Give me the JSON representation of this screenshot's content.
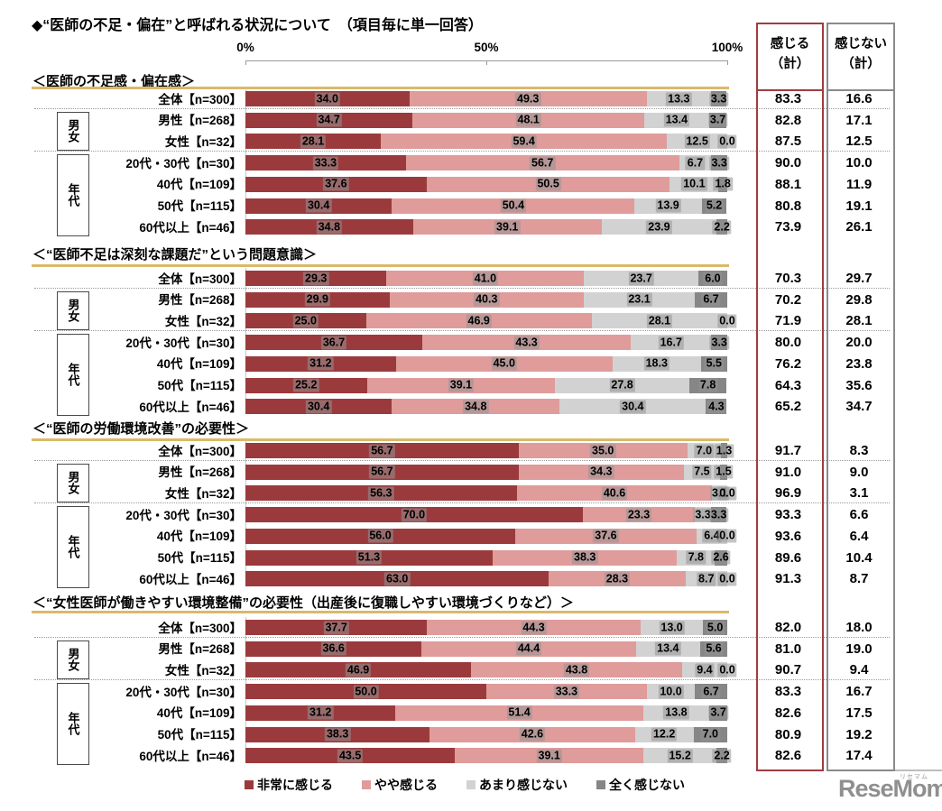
{
  "title": "◆“医師の不足・偏在”と呼ばれる状況について　（項目毎に単一回答）",
  "axis_ticks": [
    "0%",
    "50%",
    "100%"
  ],
  "summary_columns": [
    {
      "title_line1": "感じる",
      "title_line2": "（計）",
      "border_color": "#A03C40"
    },
    {
      "title_line1": "感じない",
      "title_line2": "（計）",
      "border_color": "#8a8a8a"
    }
  ],
  "legend": [
    {
      "label": "非常に感じる",
      "color": "#9B3A3C"
    },
    {
      "label": "やや感じる",
      "color": "#DF9C9B"
    },
    {
      "label": "あまり感じない",
      "color": "#D2D2D2"
    },
    {
      "label": "全く感じない",
      "color": "#868686"
    }
  ],
  "group_labels": {
    "gender": "男女",
    "age": "年代"
  },
  "logo": {
    "text": "ReseMom.",
    "ruby": "リセマム"
  },
  "chart_data": {
    "type": "bar",
    "stacked": true,
    "orientation": "horizontal",
    "x_range": [
      0,
      100
    ],
    "series_labels": [
      "非常に感じる",
      "やや感じる",
      "あまり感じない",
      "全く感じない"
    ],
    "summary_labels": [
      "感じる（計）",
      "感じない（計）"
    ],
    "sections": [
      {
        "title": "＜医師の不足感・偏在感＞",
        "rows": [
          {
            "label": "全体【n=300】",
            "values": [
              34.0,
              49.3,
              13.3,
              3.3
            ],
            "agree_total": 83.3,
            "disagree_total": 16.6
          },
          {
            "label": "男性【n=268】",
            "values": [
              34.7,
              48.1,
              13.4,
              3.7
            ],
            "agree_total": 82.8,
            "disagree_total": 17.1
          },
          {
            "label": "女性【n=32】",
            "values": [
              28.1,
              59.4,
              12.5,
              0.0
            ],
            "agree_total": 87.5,
            "disagree_total": 12.5
          },
          {
            "label": "20代・30代【n=30】",
            "values": [
              33.3,
              56.7,
              6.7,
              3.3
            ],
            "agree_total": 90.0,
            "disagree_total": 10.0
          },
          {
            "label": "40代【n=109】",
            "values": [
              37.6,
              50.5,
              10.1,
              1.8
            ],
            "agree_total": 88.1,
            "disagree_total": 11.9
          },
          {
            "label": "50代【n=115】",
            "values": [
              30.4,
              50.4,
              13.9,
              5.2
            ],
            "agree_total": 80.8,
            "disagree_total": 19.1
          },
          {
            "label": "60代以上【n=46】",
            "values": [
              34.8,
              39.1,
              23.9,
              2.2
            ],
            "agree_total": 73.9,
            "disagree_total": 26.1
          }
        ]
      },
      {
        "title": "＜“医師不足は深刻な課題だ”という問題意識＞",
        "rows": [
          {
            "label": "全体【n=300】",
            "values": [
              29.3,
              41.0,
              23.7,
              6.0
            ],
            "agree_total": 70.3,
            "disagree_total": 29.7
          },
          {
            "label": "男性【n=268】",
            "values": [
              29.9,
              40.3,
              23.1,
              6.7
            ],
            "agree_total": 70.2,
            "disagree_total": 29.8
          },
          {
            "label": "女性【n=32】",
            "values": [
              25.0,
              46.9,
              28.1,
              0.0
            ],
            "agree_total": 71.9,
            "disagree_total": 28.1
          },
          {
            "label": "20代・30代【n=30】",
            "values": [
              36.7,
              43.3,
              16.7,
              3.3
            ],
            "agree_total": 80.0,
            "disagree_total": 20.0
          },
          {
            "label": "40代【n=109】",
            "values": [
              31.2,
              45.0,
              18.3,
              5.5
            ],
            "agree_total": 76.2,
            "disagree_total": 23.8
          },
          {
            "label": "50代【n=115】",
            "values": [
              25.2,
              39.1,
              27.8,
              7.8
            ],
            "agree_total": 64.3,
            "disagree_total": 35.6
          },
          {
            "label": "60代以上【n=46】",
            "values": [
              30.4,
              34.8,
              30.4,
              4.3
            ],
            "agree_total": 65.2,
            "disagree_total": 34.7
          }
        ]
      },
      {
        "title": "＜“医師の労働環境改善”の必要性＞",
        "rows": [
          {
            "label": "全体【n=300】",
            "values": [
              56.7,
              35.0,
              7.0,
              1.3
            ],
            "agree_total": 91.7,
            "disagree_total": 8.3
          },
          {
            "label": "男性【n=268】",
            "values": [
              56.7,
              34.3,
              7.5,
              1.5
            ],
            "agree_total": 91.0,
            "disagree_total": 9.0
          },
          {
            "label": "女性【n=32】",
            "values": [
              56.3,
              40.6,
              3.1,
              0.0
            ],
            "agree_total": 96.9,
            "disagree_total": 3.1
          },
          {
            "label": "20代・30代【n=30】",
            "values": [
              70.0,
              23.3,
              3.3,
              3.3
            ],
            "agree_total": 93.3,
            "disagree_total": 6.6
          },
          {
            "label": "40代【n=109】",
            "values": [
              56.0,
              37.6,
              6.4,
              0.0
            ],
            "agree_total": 93.6,
            "disagree_total": 6.4
          },
          {
            "label": "50代【n=115】",
            "values": [
              51.3,
              38.3,
              7.8,
              2.6
            ],
            "agree_total": 89.6,
            "disagree_total": 10.4
          },
          {
            "label": "60代以上【n=46】",
            "values": [
              63.0,
              28.3,
              8.7,
              0.0
            ],
            "agree_total": 91.3,
            "disagree_total": 8.7
          }
        ]
      },
      {
        "title": "＜“女性医師が働きやすい環境整備”の必要性（出産後に復職しやすい環境づくりなど）＞",
        "rows": [
          {
            "label": "全体【n=300】",
            "values": [
              37.7,
              44.3,
              13.0,
              5.0
            ],
            "agree_total": 82.0,
            "disagree_total": 18.0
          },
          {
            "label": "男性【n=268】",
            "values": [
              36.6,
              44.4,
              13.4,
              5.6
            ],
            "agree_total": 81.0,
            "disagree_total": 19.0
          },
          {
            "label": "女性【n=32】",
            "values": [
              46.9,
              43.8,
              9.4,
              0.0
            ],
            "agree_total": 90.7,
            "disagree_total": 9.4
          },
          {
            "label": "20代・30代【n=30】",
            "values": [
              50.0,
              33.3,
              10.0,
              6.7
            ],
            "agree_total": 83.3,
            "disagree_total": 16.7
          },
          {
            "label": "40代【n=109】",
            "values": [
              31.2,
              51.4,
              13.8,
              3.7
            ],
            "agree_total": 82.6,
            "disagree_total": 17.5
          },
          {
            "label": "50代【n=115】",
            "values": [
              38.3,
              42.6,
              12.2,
              7.0
            ],
            "agree_total": 80.9,
            "disagree_total": 19.2
          },
          {
            "label": "60代以上【n=46】",
            "values": [
              43.5,
              39.1,
              15.2,
              2.2
            ],
            "agree_total": 82.6,
            "disagree_total": 17.4
          }
        ]
      }
    ]
  }
}
